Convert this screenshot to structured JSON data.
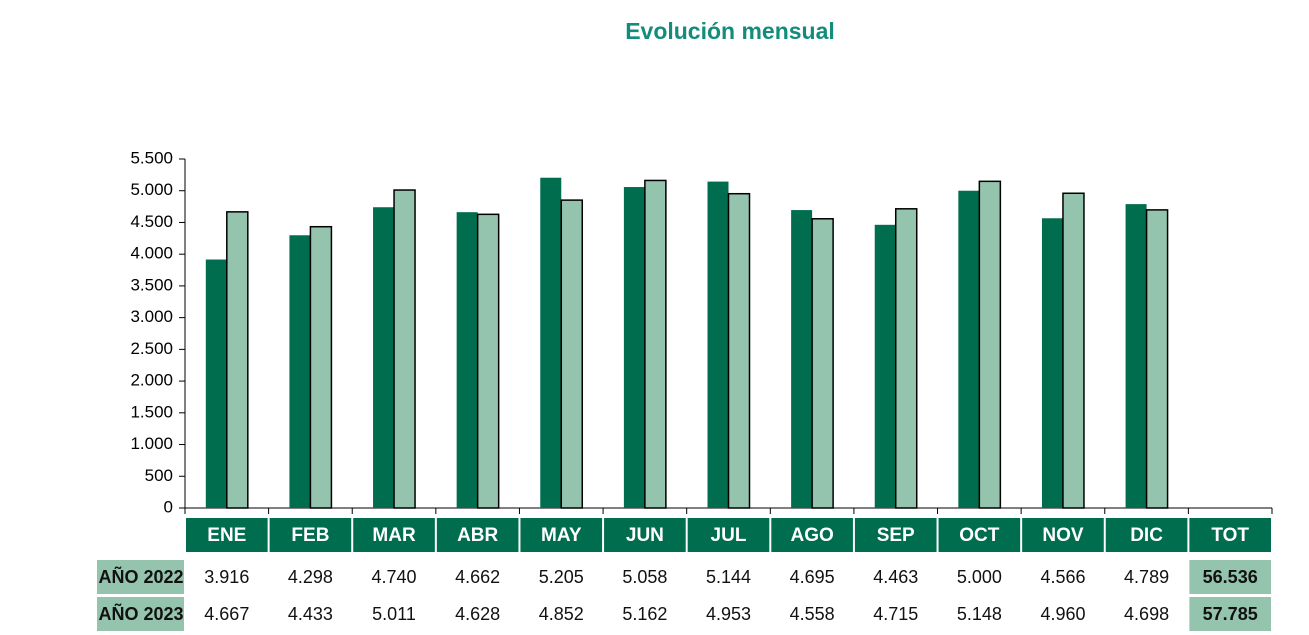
{
  "chart_data": {
    "type": "bar",
    "title": "Evolución mensual",
    "categories": [
      "ENE",
      "FEB",
      "MAR",
      "ABR",
      "MAY",
      "JUN",
      "JUL",
      "AGO",
      "SEP",
      "OCT",
      "NOV",
      "DIC"
    ],
    "total_label": "TOT",
    "series": [
      {
        "name": "AÑO 2022",
        "color": "#006e4e",
        "values": [
          3916,
          4298,
          4740,
          4662,
          5205,
          5058,
          5144,
          4695,
          4463,
          5000,
          4566,
          4789
        ],
        "value_labels": [
          "3.916",
          "4.298",
          "4.740",
          "4.662",
          "5.205",
          "5.058",
          "5.144",
          "4.695",
          "4.463",
          "5.000",
          "4.566",
          "4.789"
        ],
        "total": 56536,
        "total_label": "56.536"
      },
      {
        "name": "AÑO 2023",
        "color": "#94c4ae",
        "values": [
          4667,
          4433,
          5011,
          4628,
          4852,
          5162,
          4953,
          4558,
          4715,
          5148,
          4960,
          4698
        ],
        "value_labels": [
          "4.667",
          "4.433",
          "5.011",
          "4.628",
          "4.852",
          "5.162",
          "4.953",
          "4.558",
          "4.715",
          "5.148",
          "4.960",
          "4.698"
        ],
        "total": 57785,
        "total_label": "57.785"
      }
    ],
    "ylim": [
      0,
      5500
    ],
    "yticks": [
      0,
      500,
      {
        "value": 1000,
        "label": "1.000"
      },
      {
        "value": 1500,
        "label": "1.500"
      },
      {
        "value": 2000,
        "label": "2.000"
      },
      {
        "value": 2500,
        "label": "2.500"
      },
      {
        "value": 3000,
        "label": "3.000"
      },
      {
        "value": 3500,
        "label": "3.500"
      },
      {
        "value": 4000,
        "label": "4.000"
      },
      {
        "value": 4500,
        "label": "4.500"
      },
      {
        "value": 5000,
        "label": "5.000"
      },
      {
        "value": 5500,
        "label": "5.500"
      }
    ],
    "header_color": "#006e4e",
    "row_label_color": "#94c4ae"
  }
}
